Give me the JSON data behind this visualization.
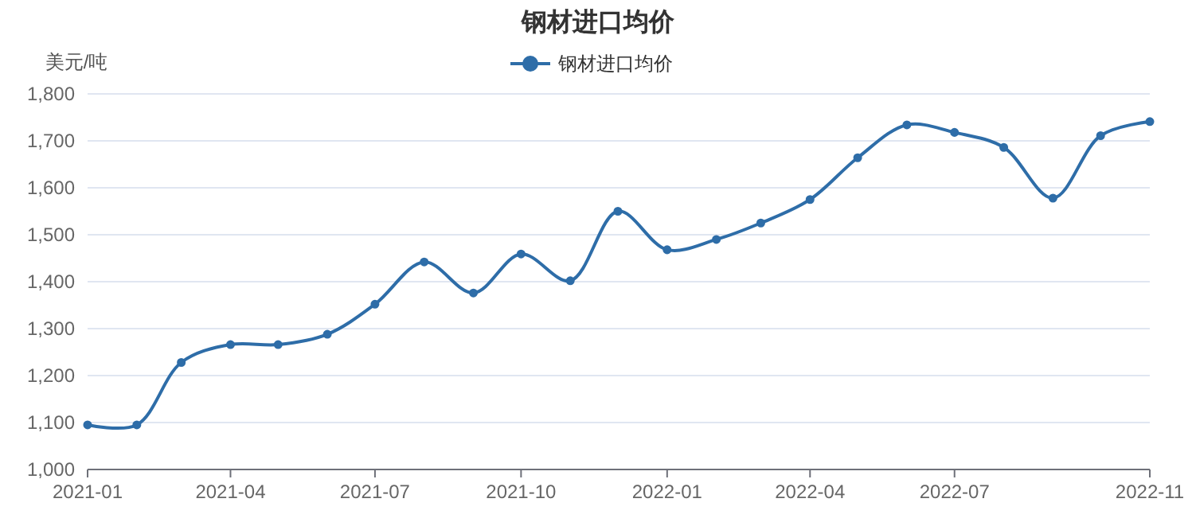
{
  "chart_data": {
    "type": "line",
    "title": "钢材进口均价",
    "ylabel": "美元/吨",
    "x": [
      "2021-01",
      "2021-02",
      "2021-03",
      "2021-04",
      "2021-05",
      "2021-06",
      "2021-07",
      "2021-08",
      "2021-09",
      "2021-10",
      "2021-11",
      "2021-12",
      "2022-01",
      "2022-02",
      "2022-03",
      "2022-04",
      "2022-05",
      "2022-06",
      "2022-07",
      "2022-08",
      "2022-09",
      "2022-10",
      "2022-11"
    ],
    "series": [
      {
        "name": "钢材进口均价",
        "color": "#2e6da8",
        "values": [
          1095,
          1095,
          1228,
          1266,
          1266,
          1288,
          1352,
          1442,
          1376,
          1459,
          1402,
          1550,
          1468,
          1490,
          1525,
          1575,
          1664,
          1734,
          1718,
          1686,
          1578,
          1711,
          1741
        ]
      }
    ],
    "xlim": [
      "2021-01",
      "2022-11"
    ],
    "xticks": [
      {
        "value": "2021-01",
        "label": "2021-01"
      },
      {
        "value": "2021-04",
        "label": "2021-04"
      },
      {
        "value": "2021-07",
        "label": "2021-07"
      },
      {
        "value": "2021-10",
        "label": "2021-10"
      },
      {
        "value": "2022-01",
        "label": "2022-01"
      },
      {
        "value": "2022-04",
        "label": "2022-04"
      },
      {
        "value": "2022-07",
        "label": "2022-07"
      },
      {
        "value": "2022-11",
        "label": "2022-11"
      }
    ],
    "ylim": [
      1000,
      1800
    ],
    "yticks": [
      {
        "value": 1000,
        "label": "1,000"
      },
      {
        "value": 1100,
        "label": "1,100"
      },
      {
        "value": 1200,
        "label": "1,200"
      },
      {
        "value": 1300,
        "label": "1,300"
      },
      {
        "value": 1400,
        "label": "1,400"
      },
      {
        "value": 1500,
        "label": "1,500"
      },
      {
        "value": 1600,
        "label": "1,600"
      },
      {
        "value": 1700,
        "label": "1,700"
      },
      {
        "value": 1800,
        "label": "1,800"
      }
    ],
    "grid": "y",
    "legend": "top",
    "marker": "circle",
    "line_style": "solid"
  }
}
